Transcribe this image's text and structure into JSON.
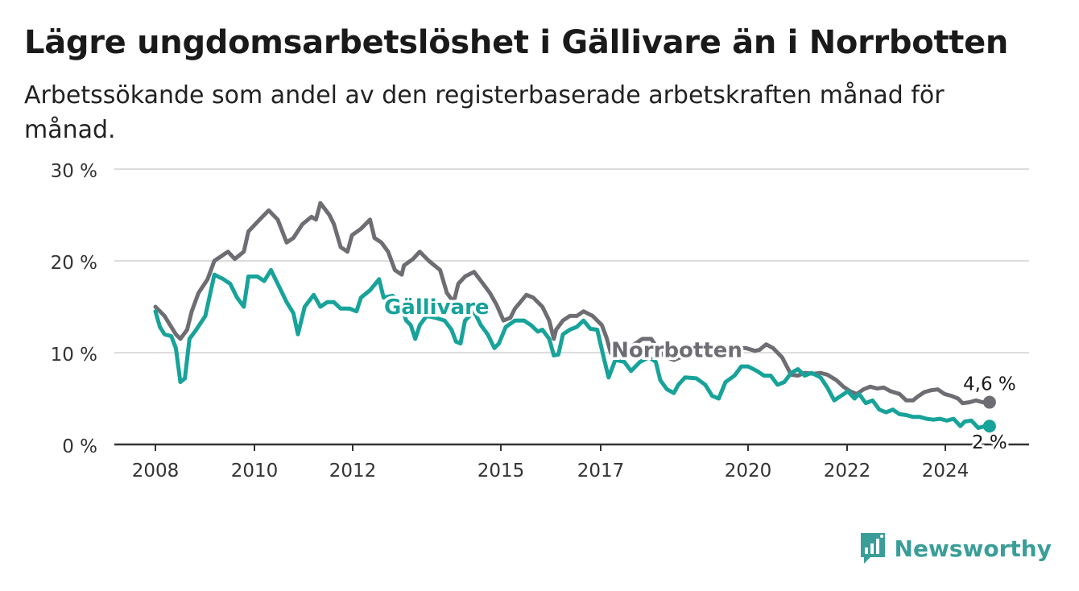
{
  "title": "Lägre ungdomsarbetslöshet i Gällivare än i Norrbotten",
  "subtitle": "Arbetssökande som andel av den registerbaserade arbetskraften månad för månad.",
  "brand": {
    "name": "Newsworthy",
    "icon": "newsworthy-logo-icon",
    "color": "#3a9e98"
  },
  "chart_data": {
    "type": "line",
    "title": "Lägre ungdomsarbetslöshet i Gällivare än i Norrbotten",
    "subtitle": "Arbetssökande som andel av den registerbaserade arbetskraften månad för månad.",
    "xlim": [
      2008,
      2025.7
    ],
    "ylim": [
      0,
      30
    ],
    "yticks": [
      0,
      10,
      20,
      30
    ],
    "ytick_labels": [
      "0 %",
      "10 %",
      "20 %",
      "30 %"
    ],
    "xticks": [
      2008,
      2010,
      2012,
      2015,
      2017,
      2020,
      2022,
      2024
    ],
    "xtick_labels": [
      "2008",
      "2010",
      "2012",
      "2015",
      "2017",
      "2020",
      "2022",
      "2024"
    ],
    "grid": true,
    "series": [
      {
        "name": "Norrbotten",
        "color": "#6e6d73",
        "end_label": "4,6 %",
        "points": [
          [
            2008.0,
            15.0
          ],
          [
            2008.2,
            14.0
          ],
          [
            2008.45,
            12.0
          ],
          [
            2008.55,
            11.5
          ],
          [
            2008.7,
            12.5
          ],
          [
            2008.8,
            14.5
          ],
          [
            2008.95,
            16.5
          ],
          [
            2009.15,
            18.0
          ],
          [
            2009.3,
            20.0
          ],
          [
            2009.6,
            21.0
          ],
          [
            2009.75,
            20.2
          ],
          [
            2009.95,
            21.0
          ],
          [
            2010.05,
            23.2
          ],
          [
            2010.3,
            24.5
          ],
          [
            2010.5,
            25.5
          ],
          [
            2010.7,
            24.5
          ],
          [
            2010.9,
            22.0
          ],
          [
            2011.05,
            22.5
          ],
          [
            2011.25,
            24.0
          ],
          [
            2011.45,
            24.8
          ],
          [
            2011.55,
            24.5
          ],
          [
            2011.65,
            26.3
          ],
          [
            2011.85,
            25.0
          ],
          [
            2011.95,
            24.0
          ],
          [
            2012.1,
            21.5
          ],
          [
            2012.25,
            21.0
          ],
          [
            2012.35,
            22.8
          ],
          [
            2012.55,
            23.5
          ],
          [
            2012.75,
            24.5
          ],
          [
            2012.85,
            22.5
          ],
          [
            2013.0,
            22.0
          ],
          [
            2013.15,
            21.0
          ],
          [
            2013.3,
            19.0
          ],
          [
            2013.45,
            18.5
          ],
          [
            2013.5,
            19.5
          ],
          [
            2013.7,
            20.2
          ],
          [
            2013.85,
            21.0
          ],
          [
            2014.05,
            20.0
          ],
          [
            2014.3,
            19.0
          ],
          [
            2014.45,
            16.5
          ],
          [
            2014.6,
            15.5
          ],
          [
            2014.7,
            17.5
          ],
          [
            2014.85,
            18.3
          ],
          [
            2015.05,
            18.8
          ],
          [
            2015.25,
            17.5
          ],
          [
            2015.4,
            16.5
          ],
          [
            2015.55,
            15.2
          ],
          [
            2015.7,
            13.5
          ],
          [
            2015.85,
            13.8
          ],
          [
            2015.95,
            14.8
          ],
          [
            2016.2,
            16.3
          ],
          [
            2016.35,
            16.0
          ],
          [
            2016.55,
            15.0
          ],
          [
            2016.7,
            13.5
          ],
          [
            2016.8,
            11.5
          ],
          [
            2016.85,
            12.5
          ],
          [
            2017.0,
            13.5
          ],
          [
            2017.15,
            14.0
          ],
          [
            2017.3,
            14.0
          ],
          [
            2017.45,
            14.5
          ],
          [
            2017.65,
            14.0
          ],
          [
            2017.85,
            13.0
          ],
          [
            2017.95,
            11.7
          ],
          [
            2018.05,
            10.0
          ],
          [
            2018.15,
            9.5
          ],
          [
            2018.3,
            10.0
          ],
          [
            2018.45,
            10.5
          ],
          [
            2018.6,
            11.0
          ],
          [
            2018.75,
            11.5
          ],
          [
            2018.95,
            11.5
          ],
          [
            2019.15,
            10.0
          ],
          [
            2019.3,
            9.5
          ],
          [
            2019.45,
            9.2
          ],
          [
            2019.6,
            9.5
          ],
          [
            2019.8,
            10.0
          ],
          [
            2020.1,
            10.0
          ],
          [
            2020.5,
            10.3
          ],
          [
            2020.9,
            10.5
          ],
          [
            2021.05,
            10.5
          ],
          [
            2021.25,
            10.2
          ],
          [
            2021.35,
            10.3
          ],
          [
            2021.5,
            10.9
          ],
          [
            2021.65,
            10.5
          ],
          [
            2021.85,
            9.5
          ],
          [
            2022.05,
            7.6
          ],
          [
            2022.2,
            7.5
          ],
          [
            2022.35,
            7.8
          ],
          [
            2022.55,
            7.7
          ],
          [
            2022.7,
            7.8
          ],
          [
            2022.85,
            7.6
          ],
          [
            2023.05,
            7.0
          ],
          [
            2023.2,
            6.3
          ],
          [
            2023.35,
            5.8
          ],
          [
            2023.5,
            5.5
          ],
          [
            2023.65,
            6.0
          ],
          [
            2023.8,
            6.3
          ],
          [
            2023.95,
            6.1
          ],
          [
            2024.1,
            6.2
          ],
          [
            2024.25,
            5.8
          ],
          [
            2024.45,
            5.5
          ],
          [
            2024.6,
            4.8
          ],
          [
            2024.75,
            4.8
          ],
          [
            2024.85,
            5.2
          ],
          [
            2025.0,
            5.7
          ],
          [
            2025.15,
            5.9
          ],
          [
            2025.3,
            6.0
          ],
          [
            2025.45,
            5.5
          ],
          [
            2025.6,
            5.3
          ],
          [
            2025.75,
            5.0
          ],
          [
            2025.85,
            4.5
          ],
          [
            2026.0,
            4.6
          ],
          [
            2026.15,
            4.8
          ],
          [
            2026.3,
            4.6
          ],
          [
            2026.45,
            4.6
          ]
        ]
      },
      {
        "name": "Gällivare",
        "color": "#17a39a",
        "end_label": "2 %",
        "points": [
          [
            2008.0,
            14.5
          ],
          [
            2008.1,
            12.8
          ],
          [
            2008.2,
            12.0
          ],
          [
            2008.35,
            11.8
          ],
          [
            2008.45,
            10.5
          ],
          [
            2008.55,
            6.8
          ],
          [
            2008.65,
            7.2
          ],
          [
            2008.75,
            11.5
          ],
          [
            2008.9,
            12.5
          ],
          [
            2009.1,
            14.0
          ],
          [
            2009.3,
            18.5
          ],
          [
            2009.5,
            18.0
          ],
          [
            2009.65,
            17.5
          ],
          [
            2009.8,
            16.0
          ],
          [
            2009.95,
            15.0
          ],
          [
            2010.05,
            18.3
          ],
          [
            2010.25,
            18.3
          ],
          [
            2010.4,
            17.8
          ],
          [
            2010.55,
            19.0
          ],
          [
            2010.75,
            17.0
          ],
          [
            2010.9,
            15.5
          ],
          [
            2011.05,
            14.3
          ],
          [
            2011.15,
            12.0
          ],
          [
            2011.3,
            15.0
          ],
          [
            2011.5,
            16.3
          ],
          [
            2011.65,
            15.0
          ],
          [
            2011.8,
            15.5
          ],
          [
            2011.95,
            15.5
          ],
          [
            2012.1,
            14.8
          ],
          [
            2012.3,
            14.8
          ],
          [
            2012.45,
            14.5
          ],
          [
            2012.55,
            16.0
          ],
          [
            2012.75,
            16.8
          ],
          [
            2012.95,
            18.0
          ],
          [
            2013.05,
            16.0
          ],
          [
            2013.25,
            16.2
          ],
          [
            2013.4,
            15.5
          ],
          [
            2013.55,
            13.5
          ],
          [
            2013.65,
            13.0
          ],
          [
            2013.75,
            11.5
          ],
          [
            2013.85,
            13.0
          ],
          [
            2014.0,
            14.0
          ],
          [
            2014.2,
            13.8
          ],
          [
            2014.4,
            13.5
          ],
          [
            2014.55,
            12.5
          ],
          [
            2014.65,
            11.2
          ],
          [
            2014.75,
            11.0
          ],
          [
            2014.85,
            13.5
          ],
          [
            2015.05,
            14.5
          ],
          [
            2015.2,
            13.0
          ],
          [
            2015.35,
            12.0
          ],
          [
            2015.5,
            10.5
          ],
          [
            2015.6,
            11.0
          ],
          [
            2015.75,
            12.8
          ],
          [
            2015.95,
            13.5
          ],
          [
            2016.15,
            13.5
          ],
          [
            2016.3,
            13.0
          ],
          [
            2016.45,
            12.3
          ],
          [
            2016.55,
            12.5
          ],
          [
            2016.7,
            11.5
          ],
          [
            2016.8,
            9.7
          ],
          [
            2016.9,
            9.8
          ],
          [
            2017.0,
            12.0
          ],
          [
            2017.15,
            12.5
          ],
          [
            2017.3,
            12.8
          ],
          [
            2017.45,
            13.5
          ],
          [
            2017.6,
            12.6
          ],
          [
            2017.75,
            12.5
          ],
          [
            2017.9,
            9.3
          ],
          [
            2018.0,
            7.3
          ],
          [
            2018.15,
            9.2
          ],
          [
            2018.35,
            9.0
          ],
          [
            2018.5,
            8.0
          ],
          [
            2018.7,
            9.0
          ],
          [
            2018.9,
            9.5
          ],
          [
            2019.05,
            9.0
          ],
          [
            2019.15,
            7.0
          ],
          [
            2019.3,
            6.0
          ],
          [
            2019.45,
            5.6
          ],
          [
            2019.55,
            6.5
          ],
          [
            2019.7,
            7.3
          ],
          [
            2019.95,
            7.2
          ],
          [
            2020.15,
            6.5
          ],
          [
            2020.3,
            5.3
          ],
          [
            2020.45,
            5.0
          ],
          [
            2020.6,
            6.8
          ],
          [
            2020.8,
            7.5
          ],
          [
            2020.95,
            8.5
          ],
          [
            2021.1,
            8.5
          ],
          [
            2021.3,
            8.0
          ],
          [
            2021.45,
            7.5
          ],
          [
            2021.6,
            7.5
          ],
          [
            2021.75,
            6.5
          ],
          [
            2021.9,
            6.8
          ],
          [
            2022.05,
            7.8
          ],
          [
            2022.2,
            8.2
          ],
          [
            2022.35,
            7.5
          ],
          [
            2022.5,
            7.8
          ],
          [
            2022.7,
            7.3
          ],
          [
            2022.85,
            6.2
          ],
          [
            2023.0,
            4.8
          ],
          [
            2023.15,
            5.3
          ],
          [
            2023.3,
            5.8
          ],
          [
            2023.45,
            5.0
          ],
          [
            2023.55,
            5.5
          ],
          [
            2023.7,
            4.5
          ],
          [
            2023.85,
            4.8
          ],
          [
            2024.0,
            3.8
          ],
          [
            2024.15,
            3.5
          ],
          [
            2024.3,
            3.8
          ],
          [
            2024.45,
            3.3
          ],
          [
            2024.6,
            3.2
          ],
          [
            2024.75,
            3.0
          ],
          [
            2024.9,
            3.0
          ],
          [
            2025.05,
            2.8
          ],
          [
            2025.2,
            2.7
          ],
          [
            2025.35,
            2.8
          ],
          [
            2025.5,
            2.6
          ],
          [
            2025.65,
            2.8
          ],
          [
            2025.8,
            2.0
          ],
          [
            2025.9,
            2.5
          ],
          [
            2026.05,
            2.6
          ],
          [
            2026.2,
            1.8
          ],
          [
            2026.35,
            2.0
          ],
          [
            2026.45,
            2.0
          ]
        ]
      }
    ]
  }
}
